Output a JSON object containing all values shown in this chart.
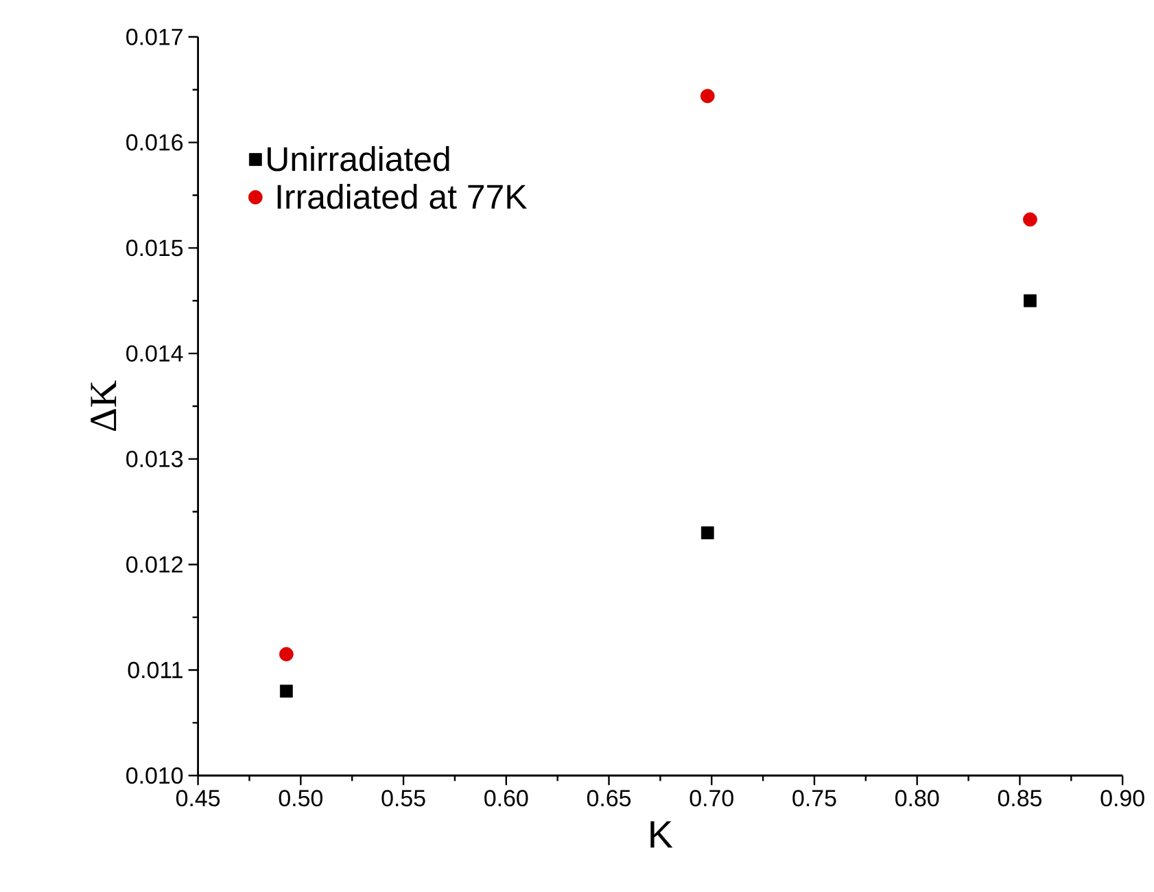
{
  "chart_data": {
    "type": "scatter",
    "xlabel": "K",
    "ylabel": "ΔK",
    "x": [
      0.493,
      0.698,
      0.855
    ],
    "series": [
      {
        "name": "Unirradiated",
        "color": "#000000",
        "marker": "square",
        "values": [
          0.0108,
          0.0123,
          0.0145
        ]
      },
      {
        "name": " Irradiated at 77K",
        "color": "#e00000",
        "marker": "circle",
        "values": [
          0.01115,
          0.01644,
          0.01527
        ]
      }
    ],
    "xlim": [
      0.45,
      0.9
    ],
    "ylim": [
      0.01,
      0.017
    ],
    "xticks": [
      {
        "value": 0.45,
        "label": "0.45"
      },
      {
        "value": 0.5,
        "label": "0.50"
      },
      {
        "value": 0.55,
        "label": "0.55"
      },
      {
        "value": 0.6,
        "label": "0.60"
      },
      {
        "value": 0.65,
        "label": "0.65"
      },
      {
        "value": 0.7,
        "label": "0.70"
      },
      {
        "value": 0.75,
        "label": "0.75"
      },
      {
        "value": 0.8,
        "label": "0.80"
      },
      {
        "value": 0.85,
        "label": "0.85"
      },
      {
        "value": 0.9,
        "label": "0.90"
      }
    ],
    "yticks": [
      {
        "value": 0.01,
        "label": "0.010"
      },
      {
        "value": 0.011,
        "label": "0.011"
      },
      {
        "value": 0.012,
        "label": "0.012"
      },
      {
        "value": 0.013,
        "label": "0.013"
      },
      {
        "value": 0.014,
        "label": "0.014"
      },
      {
        "value": 0.015,
        "label": "0.015"
      },
      {
        "value": 0.016,
        "label": "0.016"
      },
      {
        "value": 0.017,
        "label": "0.017"
      }
    ],
    "legend": "top left",
    "grid": false
  }
}
